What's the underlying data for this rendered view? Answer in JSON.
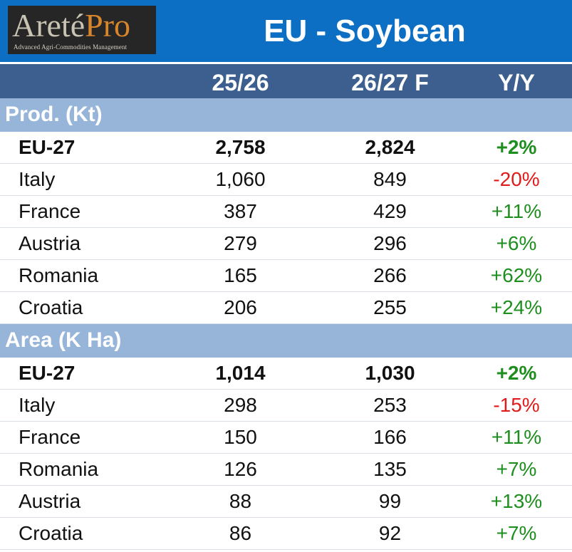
{
  "logo": {
    "word_a": "Areté",
    "word_b": "Pro",
    "tagline": "Advanced Agri-Commodities Management"
  },
  "title": "EU - Soybean",
  "columns": [
    "25/26",
    "26/27 F",
    "Y/Y"
  ],
  "colors": {
    "title_bar": "#0d6fc4",
    "header": "#3c5f8f",
    "section": "#97b5d9",
    "positive": "#1e8e1e",
    "negative": "#e01b1b"
  },
  "sections": [
    {
      "label": "Prod. (Kt)",
      "rows": [
        {
          "name": "EU-27",
          "v1": "2,758",
          "v2": "2,824",
          "yy": "+2%"
        },
        {
          "name": "Italy",
          "v1": "1,060",
          "v2": "849",
          "yy": "-20%"
        },
        {
          "name": "France",
          "v1": "387",
          "v2": "429",
          "yy": "+11%"
        },
        {
          "name": "Austria",
          "v1": "279",
          "v2": "296",
          "yy": "+6%"
        },
        {
          "name": "Romania",
          "v1": "165",
          "v2": "266",
          "yy": "+62%"
        },
        {
          "name": "Croatia",
          "v1": "206",
          "v2": "255",
          "yy": "+24%"
        }
      ]
    },
    {
      "label": "Area (K Ha)",
      "rows": [
        {
          "name": "EU-27",
          "v1": "1,014",
          "v2": "1,030",
          "yy": "+2%"
        },
        {
          "name": "Italy",
          "v1": "298",
          "v2": "253",
          "yy": "-15%"
        },
        {
          "name": "France",
          "v1": "150",
          "v2": "166",
          "yy": "+11%"
        },
        {
          "name": "Romania",
          "v1": "126",
          "v2": "135",
          "yy": "+7%"
        },
        {
          "name": "Austria",
          "v1": "88",
          "v2": "99",
          "yy": "+13%"
        },
        {
          "name": "Croatia",
          "v1": "86",
          "v2": "92",
          "yy": "+7%"
        }
      ]
    }
  ],
  "chart_data": {
    "type": "table",
    "title": "EU - Soybean",
    "columns": [
      "25/26",
      "26/27 F",
      "Y/Y"
    ],
    "groups": [
      {
        "name": "Prod. (Kt)",
        "rows": [
          {
            "country": "EU-27",
            "values": [
              2758,
              2824
            ],
            "yy_pct": 2
          },
          {
            "country": "Italy",
            "values": [
              1060,
              849
            ],
            "yy_pct": -20
          },
          {
            "country": "France",
            "values": [
              387,
              429
            ],
            "yy_pct": 11
          },
          {
            "country": "Austria",
            "values": [
              279,
              296
            ],
            "yy_pct": 6
          },
          {
            "country": "Romania",
            "values": [
              165,
              266
            ],
            "yy_pct": 62
          },
          {
            "country": "Croatia",
            "values": [
              206,
              255
            ],
            "yy_pct": 24
          }
        ]
      },
      {
        "name": "Area (K Ha)",
        "rows": [
          {
            "country": "EU-27",
            "values": [
              1014,
              1030
            ],
            "yy_pct": 2
          },
          {
            "country": "Italy",
            "values": [
              298,
              253
            ],
            "yy_pct": -15
          },
          {
            "country": "France",
            "values": [
              150,
              166
            ],
            "yy_pct": 11
          },
          {
            "country": "Romania",
            "values": [
              126,
              135
            ],
            "yy_pct": 7
          },
          {
            "country": "Austria",
            "values": [
              88,
              99
            ],
            "yy_pct": 13
          },
          {
            "country": "Croatia",
            "values": [
              86,
              92
            ],
            "yy_pct": 7
          }
        ]
      }
    ]
  }
}
